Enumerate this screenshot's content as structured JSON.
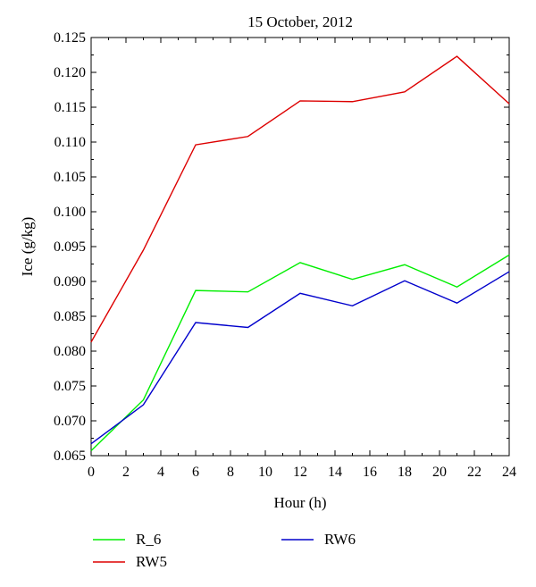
{
  "chart_data": {
    "type": "line",
    "title": "15 October, 2012",
    "xlabel": "Hour (h)",
    "ylabel": "Ice (g/kg)",
    "xlim": [
      0,
      24
    ],
    "ylim": [
      0.065,
      0.125
    ],
    "xticks": [
      "0",
      "2",
      "4",
      "6",
      "8",
      "10",
      "12",
      "14",
      "16",
      "18",
      "20",
      "22",
      "24"
    ],
    "yticks": [
      "0.065",
      "0.070",
      "0.075",
      "0.080",
      "0.085",
      "0.090",
      "0.095",
      "0.100",
      "0.105",
      "0.110",
      "0.115",
      "0.120",
      "0.125"
    ],
    "grid": false,
    "legend_position": "bottom",
    "x": [
      0,
      3,
      6,
      9,
      12,
      15,
      18,
      21,
      24
    ],
    "series": [
      {
        "name": "R_6",
        "color": "#00ee00",
        "values": [
          0.0657,
          0.073,
          0.0887,
          0.0885,
          0.0927,
          0.0903,
          0.0924,
          0.0892,
          0.0938
        ]
      },
      {
        "name": "RW5",
        "color": "#dd0000",
        "values": [
          0.0813,
          0.0945,
          0.1096,
          0.1108,
          0.1159,
          0.1158,
          0.1172,
          0.1223,
          0.1155
        ]
      },
      {
        "name": "RW6",
        "color": "#0000cc",
        "values": [
          0.0667,
          0.0723,
          0.0841,
          0.0834,
          0.0883,
          0.0865,
          0.0901,
          0.0869,
          0.0914
        ]
      }
    ]
  }
}
